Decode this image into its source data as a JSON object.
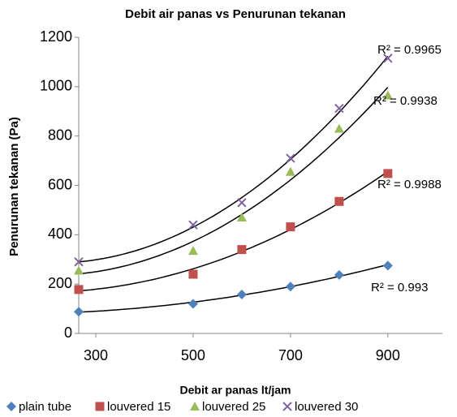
{
  "chart_data": {
    "type": "scatter",
    "title": "Debit air panas vs Penurunan tekanan",
    "x_label": "Debit ar panas lt/jam",
    "y_label": "Penurunan tekanan (Pa)",
    "x": [
      265,
      500,
      600,
      700,
      800,
      900
    ],
    "series": [
      {
        "name": "plain tube",
        "color": "#4f81bd",
        "marker": "diamond",
        "values": [
          88,
          120,
          158,
          190,
          237,
          275
        ],
        "annotation": "R² = 0.993"
      },
      {
        "name": "louvered 15",
        "color": "#c0504d",
        "marker": "square",
        "values": [
          178,
          240,
          340,
          432,
          535,
          648
        ],
        "annotation": "R² = 0.9988"
      },
      {
        "name": "louvered 25",
        "color": "#9bbb59",
        "marker": "triangle",
        "values": [
          255,
          335,
          470,
          655,
          830,
          965
        ],
        "annotation": "R² = 0.9938"
      },
      {
        "name": "louvered 30",
        "color": "#8064a2",
        "marker": "x",
        "values": [
          290,
          440,
          530,
          710,
          912,
          1115
        ],
        "annotation": "R² = 0.9965"
      }
    ],
    "trendline": "polynomial",
    "xlim": [
      265,
      1012
    ],
    "xticks": [
      300,
      500,
      700,
      900
    ],
    "ylim": [
      0,
      1200
    ],
    "yticks": [
      0,
      200,
      400,
      600,
      800,
      1000,
      1200
    ],
    "legend": "bottom"
  }
}
